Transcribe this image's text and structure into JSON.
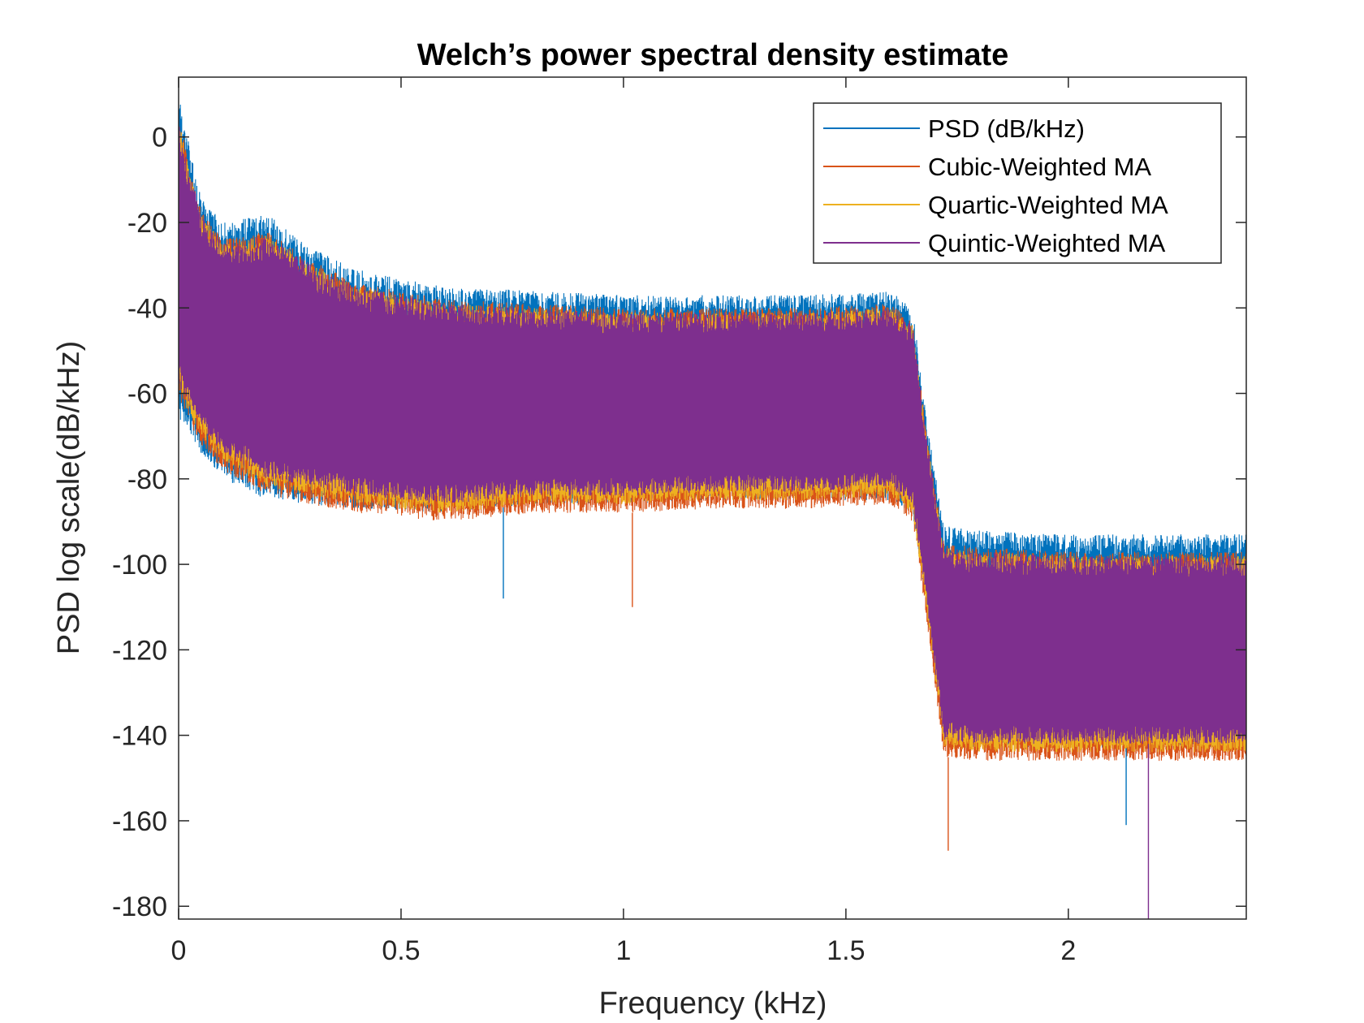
{
  "chart_data": {
    "type": "line",
    "title": "Welch’s power spectral density estimate",
    "xlabel": "Frequency (kHz)",
    "ylabel": "PSD log scale(dB/kHz)",
    "xlim": [
      0,
      2.4
    ],
    "ylim": [
      -183,
      14
    ],
    "x_ticks": [
      0,
      0.5,
      1,
      1.5,
      2
    ],
    "x_tick_labels": [
      "0",
      "0.5",
      "1",
      "1.5",
      "2"
    ],
    "y_ticks": [
      0,
      -20,
      -40,
      -60,
      -80,
      -100,
      -120,
      -140,
      -160,
      -180
    ],
    "y_tick_labels": [
      "0",
      "-20",
      "-40",
      "-60",
      "-80",
      "-100",
      "-120",
      "-140",
      "-160",
      "-180"
    ],
    "grid": false,
    "legend_position": "top-right",
    "series": [
      {
        "name": "PSD (dB/kHz)",
        "color": "#0072BD",
        "x": [
          0,
          0.02,
          0.05,
          0.1,
          0.2,
          0.3,
          0.4,
          0.6,
          0.8,
          1.0,
          1.2,
          1.4,
          1.6,
          1.65,
          1.68,
          1.72,
          1.8,
          2.0,
          2.2,
          2.4
        ],
        "upper": [
          12,
          0,
          -14,
          -20,
          -18,
          -26,
          -31,
          -35,
          -36,
          -37,
          -37,
          -37,
          -36,
          -40,
          -65,
          -91,
          -92,
          -93,
          -93,
          -93
        ],
        "lower": [
          -66,
          -68,
          -74,
          -80,
          -85,
          -86,
          -87,
          -88,
          -86,
          -86,
          -85,
          -85,
          -85,
          -88,
          -110,
          -142,
          -143,
          -143,
          -143,
          -143
        ]
      },
      {
        "name": "Cubic-Weighted MA",
        "color": "#D95319",
        "x": [
          0,
          0.02,
          0.05,
          0.1,
          0.2,
          0.3,
          0.4,
          0.6,
          0.8,
          1.0,
          1.2,
          1.4,
          1.6,
          1.65,
          1.68,
          1.72,
          1.8,
          2.0,
          2.2,
          2.4
        ],
        "upper": [
          6,
          -4,
          -17,
          -24,
          -22,
          -29,
          -34,
          -38,
          -39,
          -40,
          -40,
          -40,
          -39,
          -43,
          -68,
          -95,
          -96,
          -97,
          -97,
          -97
        ],
        "lower": [
          -62,
          -66,
          -72,
          -78,
          -84,
          -86,
          -88,
          -90,
          -88,
          -88,
          -87,
          -87,
          -86,
          -90,
          -112,
          -145,
          -146,
          -146,
          -146,
          -146
        ]
      },
      {
        "name": "Quartic-Weighted MA",
        "color": "#EDB120",
        "x": [
          0,
          0.02,
          0.05,
          0.1,
          0.2,
          0.3,
          0.4,
          0.6,
          0.8,
          1.0,
          1.2,
          1.4,
          1.6,
          1.65,
          1.68,
          1.72,
          1.8,
          2.0,
          2.2,
          2.4
        ],
        "upper": [
          4,
          -6,
          -18,
          -25,
          -23,
          -30,
          -35,
          -39,
          -40,
          -41,
          -41,
          -41,
          -40,
          -44,
          -69,
          -96,
          -97,
          -98,
          -98,
          -98
        ],
        "lower": [
          -60,
          -64,
          -70,
          -76,
          -82,
          -84,
          -86,
          -88,
          -86,
          -86,
          -85,
          -85,
          -84,
          -88,
          -110,
          -143,
          -144,
          -144,
          -144,
          -144
        ]
      },
      {
        "name": "Quintic-Weighted MA",
        "color": "#7E2F8E",
        "x": [
          0,
          0.02,
          0.05,
          0.1,
          0.2,
          0.3,
          0.4,
          0.6,
          0.8,
          1.0,
          1.2,
          1.4,
          1.6,
          1.65,
          1.68,
          1.72,
          1.8,
          2.0,
          2.2,
          2.4
        ],
        "upper": [
          4,
          -6,
          -18,
          -25,
          -23,
          -30,
          -35,
          -39,
          -40,
          -41,
          -41,
          -41,
          -40,
          -44,
          -69,
          -96,
          -97,
          -98,
          -98,
          -98
        ],
        "lower": [
          -58,
          -62,
          -68,
          -74,
          -80,
          -82,
          -84,
          -86,
          -84,
          -84,
          -83,
          -83,
          -82,
          -86,
          -108,
          -141,
          -142,
          -142,
          -142,
          -142
        ]
      }
    ],
    "annotations": [
      {
        "series": "Cubic-Weighted MA",
        "x": 1.73,
        "y": -167
      },
      {
        "series": "Quintic-Weighted MA",
        "x": 2.18,
        "y": -183
      },
      {
        "series": "PSD (dB/kHz)",
        "x": 0.73,
        "y": -108
      },
      {
        "series": "Cubic-Weighted MA",
        "x": 1.02,
        "y": -110
      },
      {
        "series": "PSD (dB/kHz)",
        "x": 2.13,
        "y": -161
      }
    ]
  }
}
